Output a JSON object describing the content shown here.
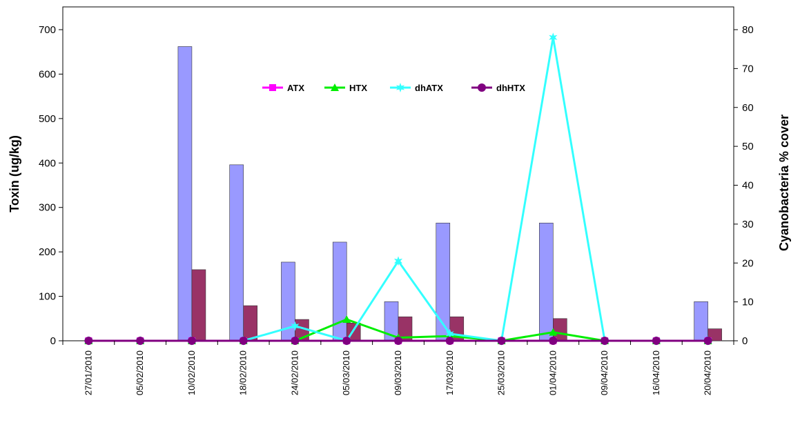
{
  "chart_data": {
    "type": "bar+line",
    "categories": [
      "27/01/2010",
      "05/02/2010",
      "10/02/2010",
      "18/02/2010",
      "24/02/2010",
      "05/03/2010",
      "09/03/2010",
      "17/03/2010",
      "25/03/2010",
      "01/04/2010",
      "09/04/2010",
      "16/04/2010",
      "20/04/2010"
    ],
    "bar_series": [
      {
        "name": "",
        "axis": "left",
        "color": "#9999ff",
        "values": [
          0,
          0,
          662,
          396,
          177,
          222,
          88,
          265,
          0,
          265,
          0,
          0,
          88
        ]
      },
      {
        "name": "",
        "axis": "left",
        "color": "#993366",
        "values": [
          0,
          0,
          160,
          79,
          48,
          40,
          54,
          54,
          0,
          50,
          0,
          0,
          27
        ]
      }
    ],
    "line_series": [
      {
        "name": "ATX",
        "axis": "right",
        "color": "#ff00ff",
        "marker": "square",
        "values": [
          0,
          0,
          0,
          0,
          0,
          0,
          0,
          0,
          0,
          0,
          0,
          0,
          0
        ]
      },
      {
        "name": "HTX",
        "axis": "right",
        "color": "#00ee00",
        "marker": "triangle",
        "values": [
          0,
          0,
          0,
          0,
          0,
          5.5,
          0.8,
          1.2,
          0,
          2.2,
          0,
          0,
          0
        ]
      },
      {
        "name": "dhATX",
        "axis": "right",
        "color": "#33ffff",
        "marker": "star",
        "values": [
          0,
          0,
          0,
          0,
          3.8,
          0,
          20.5,
          1.8,
          0,
          78,
          0,
          0,
          0
        ]
      },
      {
        "name": "dhHTX",
        "axis": "right",
        "color": "#800080",
        "marker": "circle",
        "values": [
          0,
          0,
          0,
          0,
          0,
          0,
          0,
          0,
          0,
          0,
          0,
          0,
          0
        ]
      }
    ],
    "ylabel": "Toxin  (ug/kg)",
    "y2label": "Cyanobacteria % cover",
    "ylim": [
      0,
      700
    ],
    "y2lim": [
      0,
      80
    ],
    "yticks": [
      0,
      100,
      200,
      300,
      400,
      500,
      600,
      700
    ],
    "y2ticks": [
      0,
      10,
      20,
      30,
      40,
      50,
      60,
      70,
      80
    ],
    "legend": "top-center",
    "grid": false
  }
}
